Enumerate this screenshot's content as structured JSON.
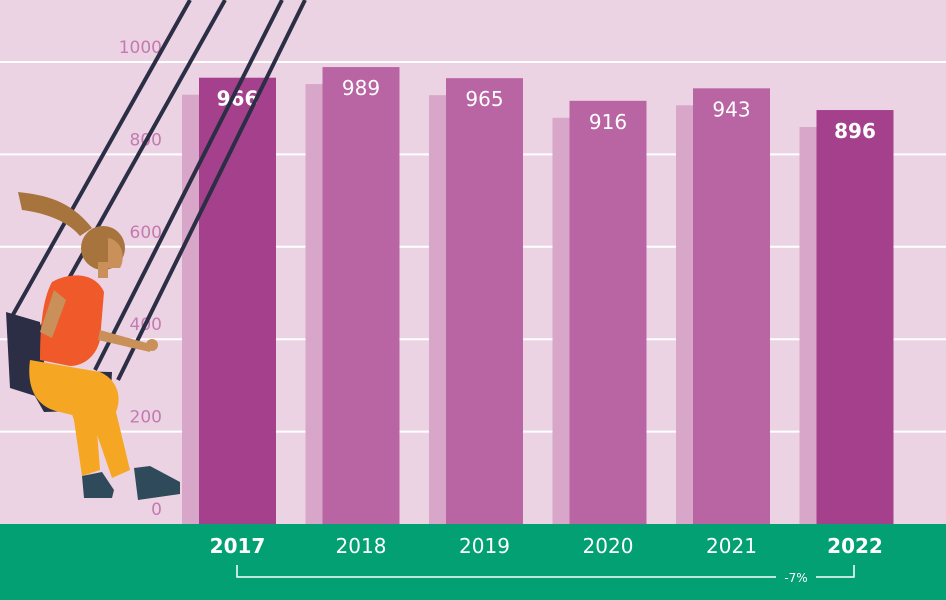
{
  "chart_data": {
    "type": "bar",
    "categories": [
      "2017",
      "2018",
      "2019",
      "2020",
      "2021",
      "2022"
    ],
    "values": [
      966,
      989,
      965,
      916,
      943,
      896
    ],
    "highlighted": [
      "2017",
      "2022"
    ],
    "ylim": [
      0,
      1000
    ],
    "yticks": [
      0,
      200,
      400,
      600,
      800,
      1000
    ],
    "grid": true,
    "change_label": "-7%",
    "colors": {
      "background": "#ecd3e4",
      "bar": "#b964a3",
      "bar_highlight": "#a4408c",
      "bar_shadow": "#d7a6c8",
      "footer": "#02a072",
      "tick_label": "#c47ab1",
      "grid": "#ffffff"
    }
  },
  "illustration": {
    "name": "girl-on-swing",
    "colors": {
      "shirt": "#f05a2a",
      "pants": "#f5a623",
      "hair": "#a8743d",
      "skin": "#c9905a",
      "seat": "#2b2e45",
      "shoes": "#2f4a5a",
      "ropes": "#2b2e45"
    }
  }
}
